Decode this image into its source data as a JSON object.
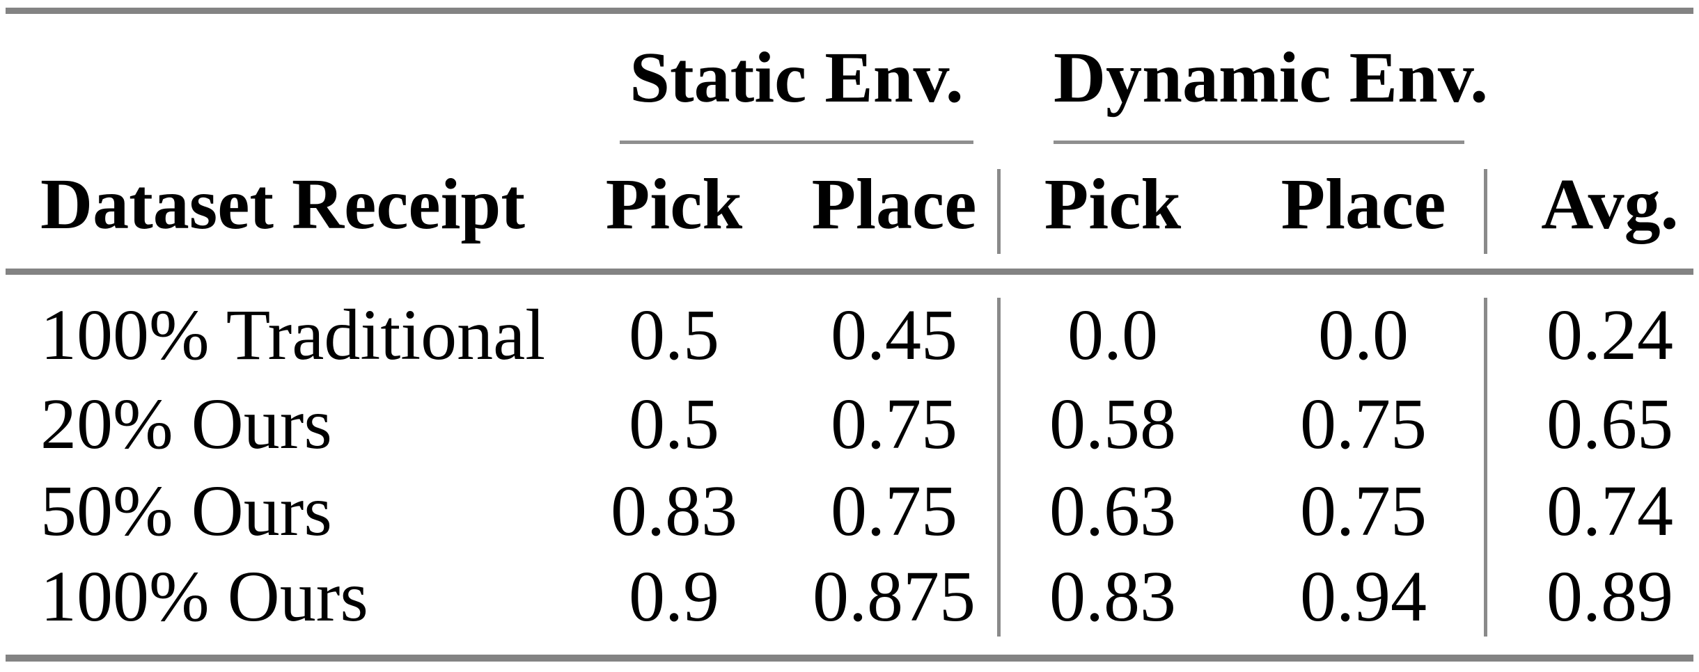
{
  "table": {
    "column_groups": {
      "static": "Static Env.",
      "dynamic": "Dynamic Env."
    },
    "header": {
      "row_label": "Dataset Receipt",
      "static_pick": "Pick",
      "static_place": "Place",
      "dynamic_pick": "Pick",
      "dynamic_place": "Place",
      "avg": "Avg."
    },
    "rows": [
      {
        "cells": [
          "100% Traditional",
          "0.5",
          "0.45",
          "0.0",
          "0.0",
          "0.24"
        ]
      },
      {
        "cells": [
          "20% Ours",
          "0.5",
          "0.75",
          "0.58",
          "0.75",
          "0.65"
        ]
      },
      {
        "cells": [
          "50% Ours",
          "0.83",
          "0.75",
          "0.63",
          "0.75",
          "0.74"
        ]
      },
      {
        "cells": [
          "100% Ours",
          "0.9",
          "0.875",
          "0.83",
          "0.94",
          "0.89"
        ]
      }
    ],
    "colors": {
      "heavy_rule": "#838383",
      "light_rule": "#8f8f8f",
      "vertical_rule": "#8a8a8a",
      "text": "#000000",
      "background": "#ffffff"
    }
  }
}
